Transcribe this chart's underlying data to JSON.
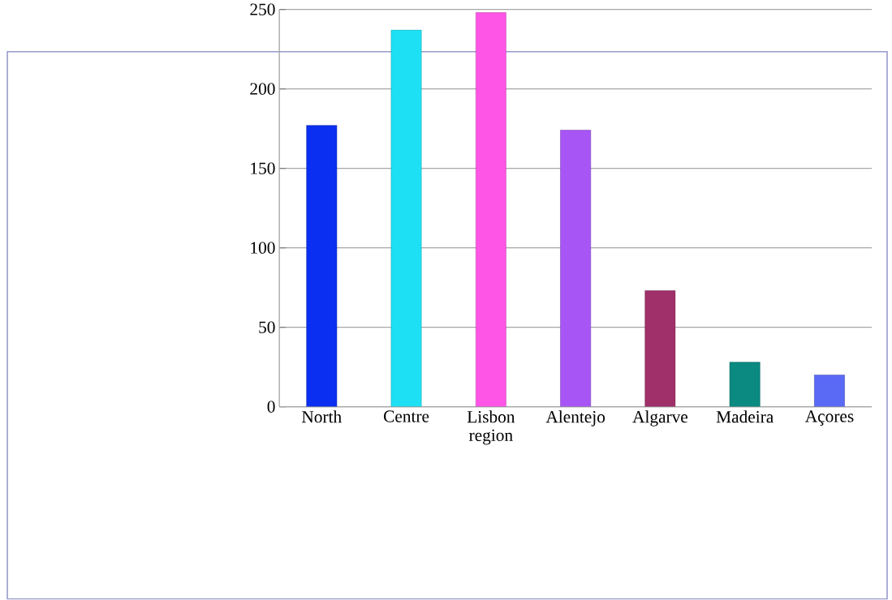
{
  "chart_data": {
    "type": "bar",
    "categories": [
      "North",
      "Centre",
      "Lisbon region",
      "Alentejo",
      "Algarve",
      "Madeira",
      "Açores"
    ],
    "values": [
      177,
      237,
      248,
      174,
      73,
      28,
      20
    ],
    "colors": [
      "#0a2ff0",
      "#1ee0f5",
      "#ff55e6",
      "#a855f5",
      "#a0306a",
      "#0a8a80",
      "#5a6af5"
    ],
    "ylim": [
      0,
      250
    ],
    "yticks": [
      0,
      50,
      100,
      150,
      200,
      250
    ],
    "grid": "y"
  }
}
